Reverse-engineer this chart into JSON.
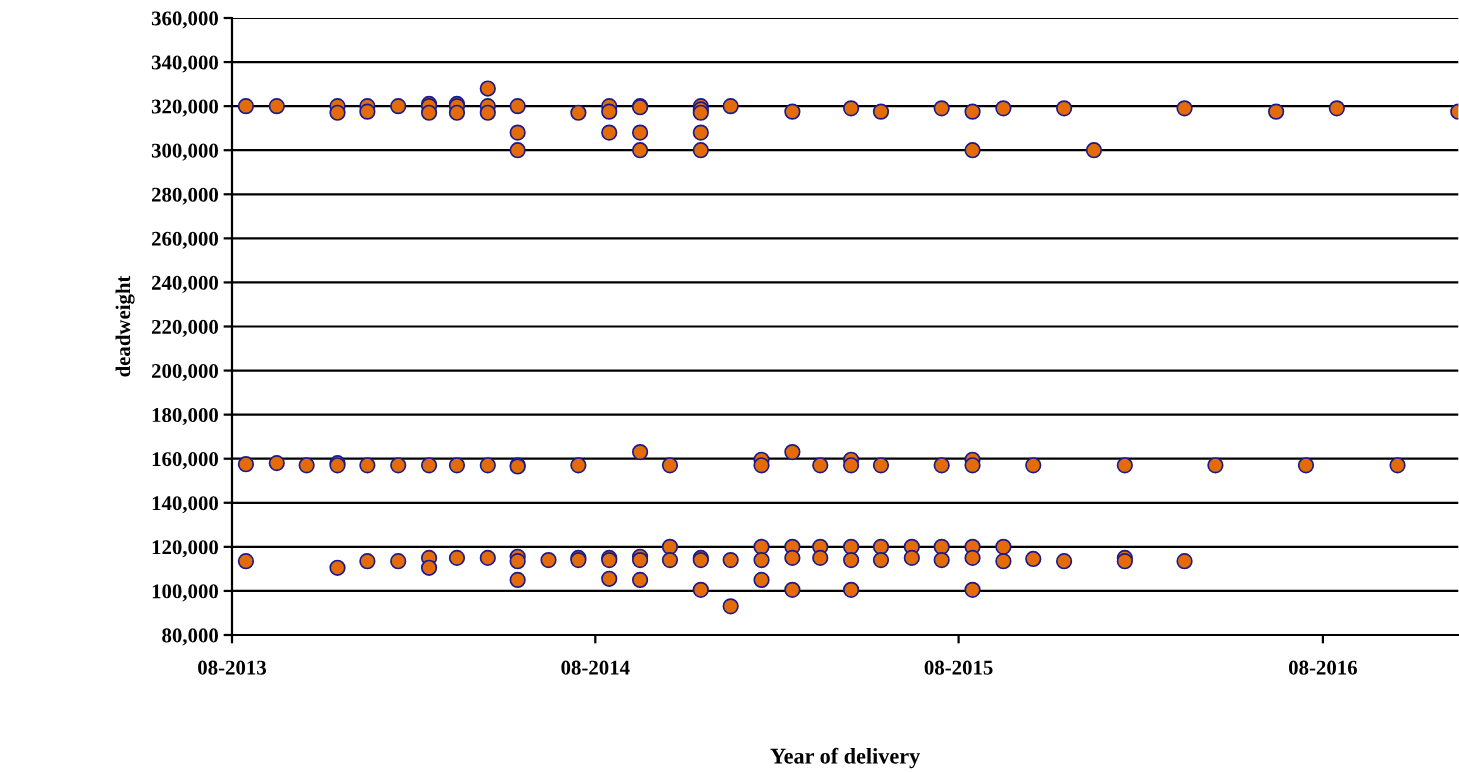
{
  "chart_data": {
    "type": "scatter",
    "xlabel": "Year of delivery",
    "ylabel": "deadweight",
    "xlim": [
      "2013-08-01",
      "2016-12-15"
    ],
    "xticks": [
      {
        "value": "2013-08-01",
        "label": "08-2013"
      },
      {
        "value": "2014-08-01",
        "label": "08-2014"
      },
      {
        "value": "2015-08-01",
        "label": "08-2015"
      },
      {
        "value": "2016-08-01",
        "label": "08-2016"
      }
    ],
    "ylim": [
      80000,
      360000
    ],
    "yticks": [
      {
        "value": 80000,
        "label": "80,000"
      },
      {
        "value": 100000,
        "label": "100,000"
      },
      {
        "value": 120000,
        "label": "120,000"
      },
      {
        "value": 140000,
        "label": "140,000"
      },
      {
        "value": 160000,
        "label": "160,000"
      },
      {
        "value": 180000,
        "label": "180,000"
      },
      {
        "value": 200000,
        "label": "200,000"
      },
      {
        "value": 220000,
        "label": "220,000"
      },
      {
        "value": 240000,
        "label": "240,000"
      },
      {
        "value": 260000,
        "label": "260,000"
      },
      {
        "value": 280000,
        "label": "280,000"
      },
      {
        "value": 300000,
        "label": "300,000"
      },
      {
        "value": 320000,
        "label": "320,000"
      },
      {
        "value": 340000,
        "label": "340,000"
      },
      {
        "value": 360000,
        "label": "360,000"
      }
    ],
    "grid": "y",
    "marker": "circle",
    "legend": false,
    "series": [
      {
        "color": "#e36c09",
        "x": [
          "2013-08-15",
          "2013-08-15",
          "2013-08-15",
          "2013-09-15",
          "2013-09-15",
          "2013-10-15",
          "2013-11-15",
          "2013-11-15",
          "2013-11-15",
          "2013-11-15",
          "2013-11-15",
          "2013-12-15",
          "2013-12-15",
          "2013-12-15",
          "2013-12-15",
          "2014-01-15",
          "2014-01-15",
          "2014-01-15",
          "2014-02-15",
          "2014-02-15",
          "2014-02-15",
          "2014-02-15",
          "2014-02-15",
          "2014-02-15",
          "2014-03-15",
          "2014-03-15",
          "2014-03-15",
          "2014-03-15",
          "2014-03-15",
          "2014-04-15",
          "2014-04-15",
          "2014-04-15",
          "2014-04-15",
          "2014-04-15",
          "2014-05-15",
          "2014-05-15",
          "2014-05-15",
          "2014-05-15",
          "2014-05-15",
          "2014-05-15",
          "2014-05-15",
          "2014-05-15",
          "2014-06-15",
          "2014-07-15",
          "2014-07-15",
          "2014-07-15",
          "2014-07-15",
          "2014-08-15",
          "2014-08-15",
          "2014-08-15",
          "2014-08-15",
          "2014-08-15",
          "2014-08-15",
          "2014-09-15",
          "2014-09-15",
          "2014-09-15",
          "2014-09-15",
          "2014-09-15",
          "2014-09-15",
          "2014-09-15",
          "2014-09-15",
          "2014-10-15",
          "2014-10-15",
          "2014-10-15",
          "2014-11-15",
          "2014-11-15",
          "2014-11-15",
          "2014-11-15",
          "2014-11-15",
          "2014-11-15",
          "2014-11-15",
          "2014-11-15",
          "2014-12-15",
          "2014-12-15",
          "2014-12-15",
          "2015-01-15",
          "2015-01-15",
          "2015-01-15",
          "2015-01-15",
          "2015-01-15",
          "2015-02-15",
          "2015-02-15",
          "2015-02-15",
          "2015-02-15",
          "2015-02-15",
          "2015-03-15",
          "2015-03-15",
          "2015-03-15",
          "2015-04-15",
          "2015-04-15",
          "2015-04-15",
          "2015-04-15",
          "2015-04-15",
          "2015-04-15",
          "2015-05-15",
          "2015-05-15",
          "2015-05-15",
          "2015-05-15",
          "2015-06-15",
          "2015-06-15",
          "2015-07-15",
          "2015-07-15",
          "2015-07-15",
          "2015-07-15",
          "2015-08-15",
          "2015-08-15",
          "2015-08-15",
          "2015-08-15",
          "2015-08-15",
          "2015-08-15",
          "2015-08-15",
          "2015-09-15",
          "2015-09-15",
          "2015-09-15",
          "2015-10-15",
          "2015-10-15",
          "2015-11-15",
          "2015-11-15",
          "2015-12-15",
          "2016-01-15",
          "2016-01-15",
          "2016-01-15",
          "2016-03-15",
          "2016-03-15",
          "2016-04-15",
          "2016-06-15",
          "2016-07-15",
          "2016-08-15",
          "2016-10-15",
          "2016-12-15"
        ],
        "values": [
          320000,
          157500,
          113500,
          320000,
          158000,
          157000,
          320000,
          317000,
          158000,
          157000,
          110500,
          320000,
          317500,
          157000,
          113500,
          320000,
          157000,
          113500,
          321000,
          320000,
          317000,
          157000,
          115000,
          110500,
          321000,
          320000,
          317000,
          157000,
          115000,
          328000,
          320000,
          317000,
          157000,
          115000,
          320000,
          308000,
          300000,
          157000,
          156500,
          115500,
          113500,
          105000,
          114000,
          317000,
          157000,
          115000,
          114000,
          320000,
          317500,
          308000,
          115000,
          114000,
          105500,
          320000,
          319500,
          308000,
          300000,
          163000,
          115500,
          114000,
          105000,
          157000,
          120000,
          114000,
          320000,
          318500,
          317000,
          308000,
          300000,
          115000,
          114000,
          100500,
          320000,
          114000,
          93000,
          159500,
          157000,
          120000,
          114000,
          105000,
          317500,
          163000,
          120000,
          115000,
          100500,
          157000,
          120000,
          115000,
          319000,
          159500,
          157000,
          120000,
          114000,
          100500,
          317500,
          157000,
          120000,
          114000,
          120000,
          115000,
          319000,
          157000,
          120000,
          114000,
          317500,
          300000,
          159500,
          157000,
          120000,
          115000,
          100500,
          319000,
          120000,
          113500,
          157000,
          114500,
          319000,
          113500,
          300000,
          157000,
          115000,
          113500,
          319000,
          113500,
          157000,
          317500,
          157000,
          319000,
          157000,
          317500
        ]
      }
    ]
  }
}
